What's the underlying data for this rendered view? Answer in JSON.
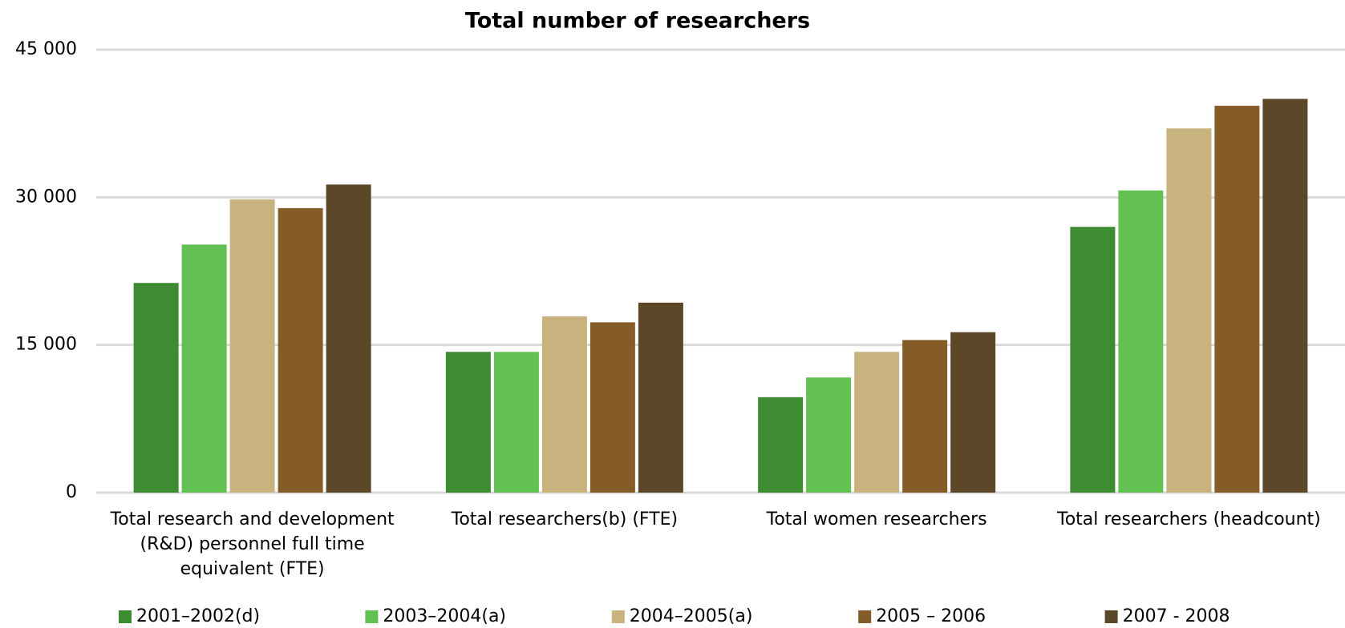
{
  "chart_data": {
    "type": "bar",
    "title": "Total number of researchers",
    "categories": [
      "Total research and development (R&D) personnel full time equivalent (FTE)",
      "Total researchers(b) (FTE)",
      "Total women researchers",
      "Total researchers (headcount)"
    ],
    "series": [
      {
        "name": "2001–2002(d)",
        "color": "#3d8c31",
        "values": [
          21300,
          14300,
          9700,
          27000
        ]
      },
      {
        "name": "2003–2004(a)",
        "color": "#62c152",
        "values": [
          25200,
          14300,
          11700,
          30700
        ]
      },
      {
        "name": "2004–2005(a)",
        "color": "#c8b27e",
        "values": [
          29800,
          17900,
          14300,
          37000
        ]
      },
      {
        "name": "2005 – 2006",
        "color": "#855c28",
        "values": [
          28900,
          17300,
          15500,
          39300
        ]
      },
      {
        "name": "2007 - 2008",
        "color": "#5c4829",
        "values": [
          31300,
          19300,
          16300,
          40000
        ]
      }
    ],
    "ylim": [
      0,
      45000
    ],
    "yticks": [
      0,
      {
        "value": 15000,
        "label": "15 000"
      },
      {
        "value": 30000,
        "label": "30 000"
      },
      {
        "value": 45000,
        "label": "45 000"
      }
    ],
    "grid": true,
    "legend": "bottom"
  }
}
